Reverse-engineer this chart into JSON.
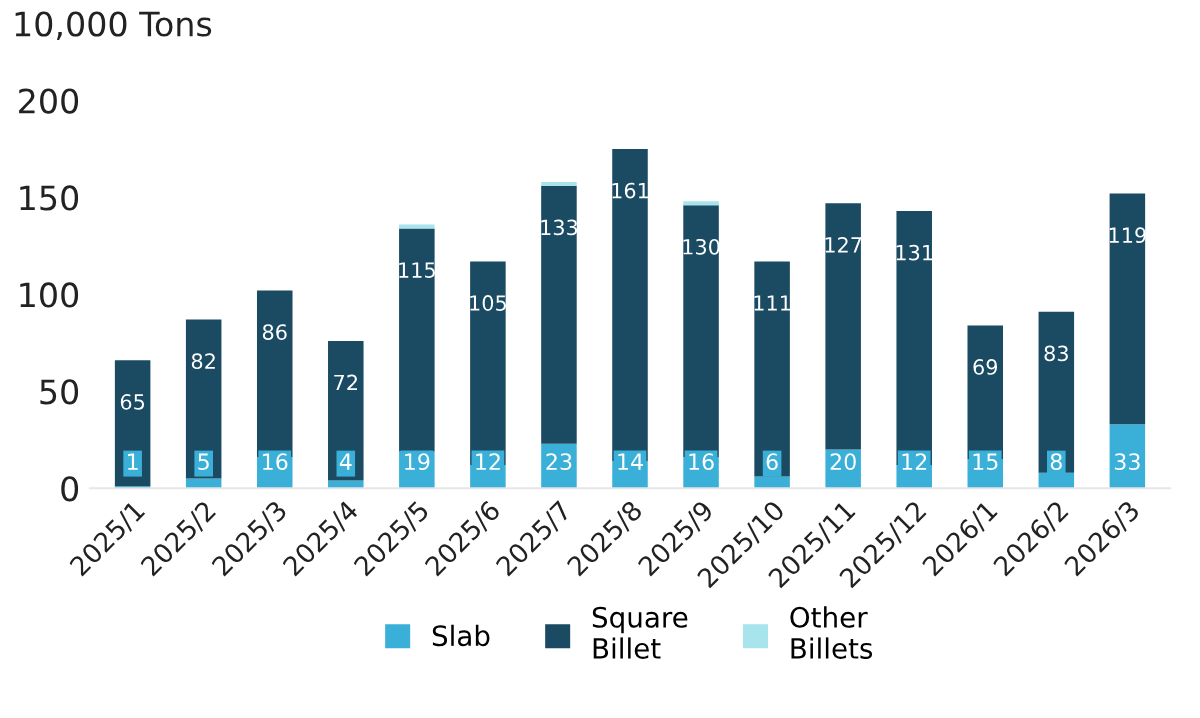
{
  "chart_data": {
    "type": "bar",
    "stacked": true,
    "ylabel": "10,000 Tons",
    "categories": [
      "2025/1",
      "2025/2",
      "2025/3",
      "2025/4",
      "2025/5",
      "2025/6",
      "2025/7",
      "2025/8",
      "2025/9",
      "2025/10",
      "2025/11",
      "2025/12",
      "2026/1",
      "2026/2",
      "2026/3"
    ],
    "series": [
      {
        "name": "Slab",
        "color": "#3ab0d8",
        "values": [
          1,
          5,
          16,
          4,
          19,
          12,
          23,
          14,
          16,
          6,
          20,
          12,
          15,
          8,
          33
        ],
        "value_labels": [
          "1",
          "5",
          "16",
          "4",
          "19",
          "12",
          "23",
          "14",
          "16",
          "6",
          "20",
          "12",
          "15",
          "8",
          "33"
        ]
      },
      {
        "name": "Square\nBillet",
        "color": "#1b4a63",
        "values": [
          65,
          82,
          86,
          72,
          115,
          105,
          133,
          161,
          130,
          111,
          127,
          131,
          69,
          83,
          119
        ],
        "value_labels": [
          "65",
          "82",
          "86",
          "72",
          "115",
          "105",
          "133",
          "161",
          "130",
          "111",
          "127",
          "131",
          "69",
          "83",
          "119"
        ]
      },
      {
        "name": "Other\nBillets",
        "color": "#a8e4ec",
        "values": [
          0,
          0,
          0,
          0,
          2,
          0,
          2,
          0,
          2,
          0,
          0,
          0,
          0,
          0,
          0
        ]
      }
    ],
    "ylim": [
      0,
      200
    ],
    "yticks": [
      0,
      50,
      100,
      150,
      200
    ],
    "grid": false,
    "legend": "bottom"
  }
}
